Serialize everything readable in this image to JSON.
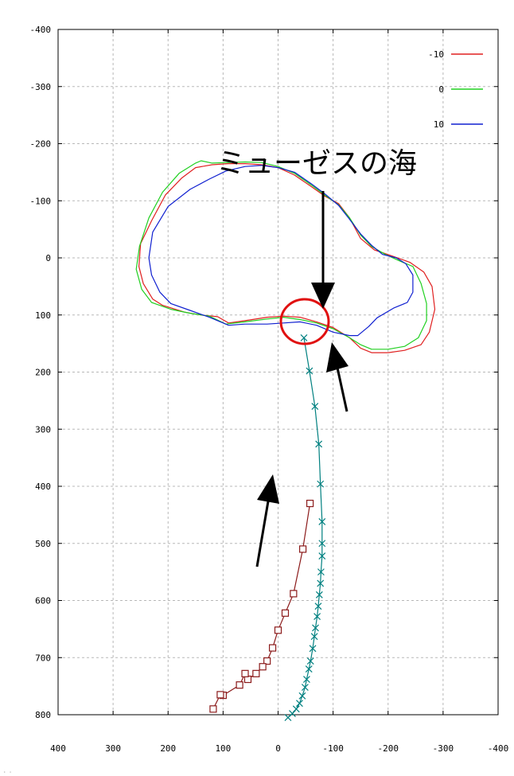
{
  "chart_data": {
    "type": "line",
    "title": "",
    "xlabel": "",
    "ylabel": "",
    "xlim": [
      400,
      -400
    ],
    "ylim": [
      -400,
      800
    ],
    "x_ticks": [
      "400",
      "300",
      "200",
      "100",
      "0",
      "-100",
      "-200",
      "-300",
      "-400"
    ],
    "y_ticks": [
      "-400",
      "-300",
      "-200",
      "-100",
      "0",
      "100",
      "200",
      "300",
      "400",
      "500",
      "600",
      "700",
      "800"
    ],
    "grid": true,
    "legend_position": "top-right",
    "annotation": "ミューゼスの海",
    "footer_text": "· ·",
    "series": [
      {
        "name": "-10",
        "color": "#e02020",
        "marker": "none",
        "points": [
          [
            90,
            114
          ],
          [
            60,
            110
          ],
          [
            20,
            104
          ],
          [
            -10,
            102
          ],
          [
            -40,
            104
          ],
          [
            -70,
            112
          ],
          [
            -100,
            122
          ],
          [
            -130,
            140
          ],
          [
            -150,
            158
          ],
          [
            -170,
            166
          ],
          [
            -200,
            166
          ],
          [
            -230,
            162
          ],
          [
            -260,
            152
          ],
          [
            -275,
            130
          ],
          [
            -285,
            90
          ],
          [
            -280,
            50
          ],
          [
            -265,
            25
          ],
          [
            -240,
            8
          ],
          [
            -205,
            -4
          ],
          [
            -175,
            -14
          ],
          [
            -150,
            -34
          ],
          [
            -130,
            -70
          ],
          [
            -110,
            -95
          ],
          [
            -85,
            -108
          ],
          [
            -60,
            -125
          ],
          [
            -30,
            -145
          ],
          [
            0,
            -158
          ],
          [
            30,
            -163
          ],
          [
            60,
            -165
          ],
          [
            90,
            -165
          ],
          [
            120,
            -163
          ],
          [
            150,
            -158
          ],
          [
            175,
            -140
          ],
          [
            205,
            -110
          ],
          [
            230,
            -65
          ],
          [
            250,
            -25
          ],
          [
            253,
            15
          ],
          [
            245,
            45
          ],
          [
            228,
            72
          ],
          [
            210,
            83
          ],
          [
            170,
            95
          ],
          [
            140,
            100
          ],
          [
            110,
            103
          ],
          [
            90,
            114
          ]
        ]
      },
      {
        "name": "0",
        "color": "#20d020",
        "marker": "none",
        "points": [
          [
            95,
            116
          ],
          [
            60,
            112
          ],
          [
            20,
            107
          ],
          [
            -10,
            104
          ],
          [
            -40,
            108
          ],
          [
            -70,
            114
          ],
          [
            -100,
            124
          ],
          [
            -130,
            140
          ],
          [
            -150,
            152
          ],
          [
            -170,
            160
          ],
          [
            -200,
            160
          ],
          [
            -230,
            155
          ],
          [
            -255,
            140
          ],
          [
            -270,
            110
          ],
          [
            -270,
            80
          ],
          [
            -260,
            45
          ],
          [
            -245,
            15
          ],
          [
            -220,
            5
          ],
          [
            -195,
            -6
          ],
          [
            -170,
            -20
          ],
          [
            -150,
            -40
          ],
          [
            -130,
            -70
          ],
          [
            -110,
            -93
          ],
          [
            -85,
            -110
          ],
          [
            -60,
            -128
          ],
          [
            -30,
            -148
          ],
          [
            0,
            -160
          ],
          [
            30,
            -167
          ],
          [
            60,
            -168
          ],
          [
            90,
            -167
          ],
          [
            120,
            -166
          ],
          [
            140,
            -170
          ],
          [
            150,
            -166
          ],
          [
            180,
            -148
          ],
          [
            210,
            -115
          ],
          [
            235,
            -70
          ],
          [
            252,
            -20
          ],
          [
            258,
            20
          ],
          [
            248,
            55
          ],
          [
            230,
            78
          ],
          [
            195,
            90
          ],
          [
            160,
            97
          ],
          [
            125,
            102
          ],
          [
            95,
            116
          ]
        ]
      },
      {
        "name": "10",
        "color": "#1020d0",
        "marker": "none",
        "points": [
          [
            90,
            118
          ],
          [
            60,
            116
          ],
          [
            20,
            116
          ],
          [
            -10,
            114
          ],
          [
            -40,
            112
          ],
          [
            -70,
            118
          ],
          [
            -100,
            130
          ],
          [
            -130,
            136
          ],
          [
            -145,
            136
          ],
          [
            -165,
            120
          ],
          [
            -180,
            105
          ],
          [
            -210,
            88
          ],
          [
            -235,
            78
          ],
          [
            -245,
            60
          ],
          [
            -245,
            30
          ],
          [
            -232,
            10
          ],
          [
            -215,
            0
          ],
          [
            -190,
            -6
          ],
          [
            -170,
            -22
          ],
          [
            -150,
            -42
          ],
          [
            -128,
            -70
          ],
          [
            -110,
            -92
          ],
          [
            -85,
            -112
          ],
          [
            -60,
            -130
          ],
          [
            -30,
            -150
          ],
          [
            0,
            -158
          ],
          [
            30,
            -162
          ],
          [
            60,
            -160
          ],
          [
            95,
            -152
          ],
          [
            125,
            -138
          ],
          [
            160,
            -120
          ],
          [
            200,
            -90
          ],
          [
            228,
            -45
          ],
          [
            235,
            0
          ],
          [
            230,
            30
          ],
          [
            215,
            60
          ],
          [
            195,
            80
          ],
          [
            160,
            92
          ],
          [
            125,
            104
          ],
          [
            90,
            118
          ]
        ]
      },
      {
        "name": "",
        "color": "#008080",
        "marker": "x",
        "points": [
          [
            -47,
            140
          ],
          [
            -57,
            198
          ],
          [
            -67,
            260
          ],
          [
            -74,
            326
          ],
          [
            -77,
            396
          ],
          [
            -80,
            462
          ],
          [
            -80,
            500
          ],
          [
            -80,
            522
          ],
          [
            -78,
            550
          ],
          [
            -77,
            570
          ],
          [
            -75,
            590
          ],
          [
            -73,
            610
          ],
          [
            -71,
            628
          ],
          [
            -68,
            648
          ],
          [
            -66,
            663
          ],
          [
            -63,
            684
          ],
          [
            -59,
            706
          ],
          [
            -56,
            720
          ],
          [
            -52,
            738
          ],
          [
            -49,
            752
          ],
          [
            -44,
            767
          ],
          [
            -39,
            780
          ],
          [
            -33,
            790
          ],
          [
            -26,
            798
          ],
          [
            -18,
            805
          ]
        ]
      },
      {
        "name": "",
        "color": "#8b1a1a",
        "marker": "square",
        "points": [
          [
            -58,
            430
          ],
          [
            -45,
            510
          ],
          [
            -28,
            588
          ],
          [
            -13,
            622
          ],
          [
            0,
            652
          ],
          [
            10,
            683
          ],
          [
            20,
            706
          ],
          [
            28,
            716
          ],
          [
            40,
            728
          ],
          [
            55,
            738
          ],
          [
            60,
            728
          ],
          [
            70,
            748
          ],
          [
            100,
            766
          ],
          [
            105,
            765
          ],
          [
            118,
            790
          ]
        ]
      }
    ]
  }
}
